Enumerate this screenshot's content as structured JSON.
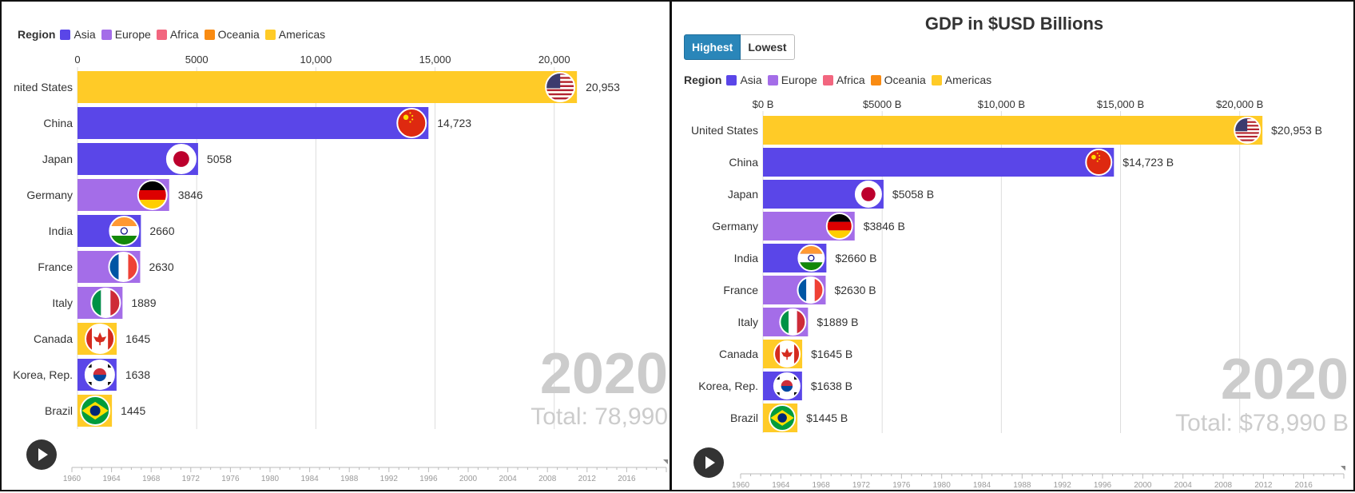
{
  "colors": {
    "Asia": "#5a46e8",
    "Europe": "#a46de8",
    "Africa": "#f2667f",
    "Oceania": "#f98b12",
    "Americas": "#ffcb27"
  },
  "legend": {
    "title": "Region",
    "items": [
      "Asia",
      "Europe",
      "Africa",
      "Oceania",
      "Americas"
    ]
  },
  "panel_right": {
    "title": "GDP in $USD Billions",
    "buttons": {
      "highest": "Highest",
      "lowest": "Lowest"
    }
  },
  "left_year": "2020",
  "left_total": "Total: 78,990",
  "right_year": "2020",
  "right_total": "Total: $78,990 B",
  "timeline_ticks": [
    "1960",
    "1964",
    "1968",
    "1972",
    "1976",
    "1980",
    "1984",
    "1988",
    "1992",
    "1996",
    "2000",
    "2004",
    "2008",
    "2012",
    "2016"
  ],
  "chart_data": [
    {
      "type": "bar",
      "orientation": "horizontal",
      "categories": [
        "United States",
        "China",
        "Japan",
        "Germany",
        "India",
        "France",
        "Italy",
        "Canada",
        "Korea, Rep.",
        "Brazil"
      ],
      "category_labels": [
        "nited States",
        "China",
        "Japan",
        "Germany",
        "India",
        "France",
        "Italy",
        "Canada",
        "Korea, Rep.",
        "Brazil"
      ],
      "values": [
        20953,
        14723,
        5058,
        3846,
        2660,
        2630,
        1889,
        1645,
        1638,
        1445
      ],
      "value_labels": [
        "20,953",
        "14,723",
        "5058",
        "3846",
        "2660",
        "2630",
        "1889",
        "1645",
        "1638",
        "1445"
      ],
      "regions": [
        "Americas",
        "Asia",
        "Asia",
        "Europe",
        "Asia",
        "Europe",
        "Europe",
        "Americas",
        "Asia",
        "Americas"
      ],
      "flags": [
        "us",
        "cn",
        "jp",
        "de",
        "in",
        "fr",
        "it",
        "ca",
        "kr",
        "br"
      ],
      "xticks": [
        0,
        5000,
        10000,
        15000,
        20000
      ],
      "xtick_labels": [
        "0",
        "5000",
        "10,000",
        "15,000",
        "20,000"
      ],
      "xlim": [
        0,
        24400
      ],
      "grid": true
    },
    {
      "type": "bar",
      "orientation": "horizontal",
      "title": "GDP in $USD Billions",
      "categories": [
        "United States",
        "China",
        "Japan",
        "Germany",
        "India",
        "France",
        "Italy",
        "Canada",
        "Korea, Rep.",
        "Brazil"
      ],
      "category_labels": [
        "United States",
        "China",
        "Japan",
        "Germany",
        "India",
        "France",
        "Italy",
        "Canada",
        "Korea, Rep.",
        "Brazil"
      ],
      "values": [
        20953,
        14723,
        5058,
        3846,
        2660,
        2630,
        1889,
        1645,
        1638,
        1445
      ],
      "value_labels": [
        "$20,953 B",
        "$14,723 B",
        "$5058 B",
        "$3846 B",
        "$2660 B",
        "$2630 B",
        "$1889 B",
        "$1645 B",
        "$1638 B",
        "$1445 B"
      ],
      "regions": [
        "Americas",
        "Asia",
        "Asia",
        "Europe",
        "Asia",
        "Europe",
        "Europe",
        "Americas",
        "Asia",
        "Americas"
      ],
      "flags": [
        "us",
        "cn",
        "jp",
        "de",
        "in",
        "fr",
        "it",
        "ca",
        "kr",
        "br"
      ],
      "xticks": [
        0,
        5000,
        10000,
        15000,
        20000
      ],
      "xtick_labels": [
        "$0 B",
        "$5000 B",
        "$10,000 B",
        "$15,000 B",
        "$20,000 B"
      ],
      "xlim": [
        0,
        24400
      ],
      "grid": true
    }
  ]
}
